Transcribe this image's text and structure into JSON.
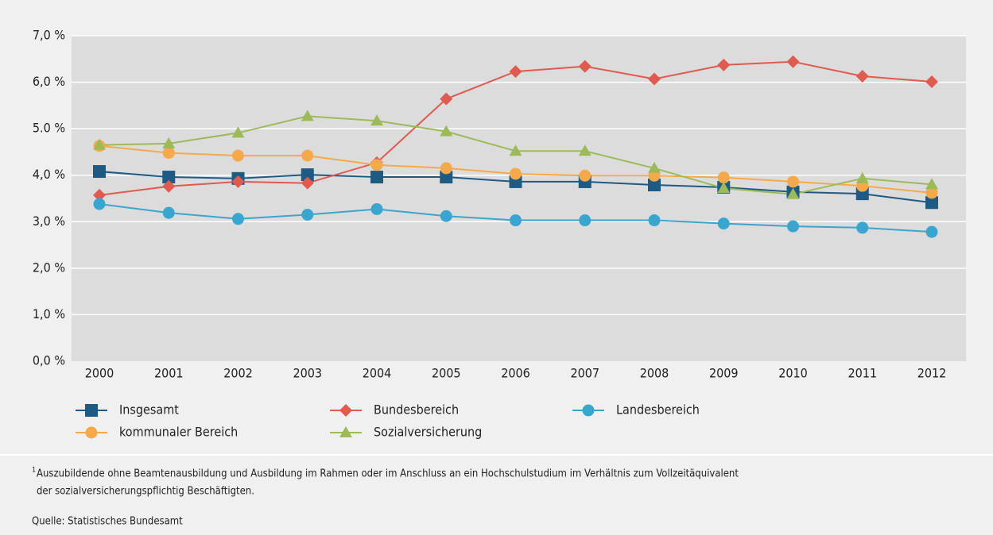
{
  "chart_data": {
    "type": "line",
    "categories": [
      "2000",
      "2001",
      "2002",
      "2003",
      "2004",
      "2005",
      "2006",
      "2007",
      "2008",
      "2009",
      "2010",
      "2011",
      "2012"
    ],
    "series": [
      {
        "name": "Insgesamt",
        "color": "#1d5a84",
        "marker": "square",
        "values": [
          4.08,
          3.96,
          3.93,
          4.01,
          3.96,
          3.96,
          3.86,
          3.86,
          3.79,
          3.74,
          3.64,
          3.6,
          3.41
        ]
      },
      {
        "name": "Bundesbereich",
        "color": "#e05a4f",
        "marker": "diamond",
        "values": [
          3.57,
          3.76,
          3.86,
          3.83,
          4.27,
          5.64,
          6.23,
          6.34,
          6.07,
          6.37,
          6.44,
          6.13,
          6.01
        ]
      },
      {
        "name": "Landesbereich",
        "color": "#3aa6cf",
        "marker": "circle",
        "values": [
          3.38,
          3.19,
          3.06,
          3.15,
          3.27,
          3.12,
          3.03,
          3.03,
          3.03,
          2.96,
          2.9,
          2.87,
          2.78
        ]
      },
      {
        "name": "kommunaler Bereich",
        "color": "#f5a94a",
        "marker": "circle",
        "values": [
          4.63,
          4.48,
          4.42,
          4.42,
          4.22,
          4.15,
          4.03,
          3.99,
          3.99,
          3.95,
          3.86,
          3.77,
          3.62
        ]
      },
      {
        "name": "Sozialversicherung",
        "color": "#9cbb58",
        "marker": "triangle",
        "values": [
          4.65,
          4.68,
          4.91,
          5.27,
          5.17,
          4.94,
          4.52,
          4.52,
          4.15,
          3.72,
          3.59,
          3.93,
          3.8
        ]
      }
    ],
    "ylim": [
      0,
      7
    ],
    "yticks": [
      {
        "value": 0,
        "label": "0,0 %"
      },
      {
        "value": 1,
        "label": "1,0 %"
      },
      {
        "value": 2,
        "label": "2,0 %"
      },
      {
        "value": 3,
        "label": "3,0 %"
      },
      {
        "value": 4,
        "label": "4,0 %"
      },
      {
        "value": 5,
        "label": "5.0 %"
      },
      {
        "value": 6,
        "label": "6,0 %"
      },
      {
        "value": 7,
        "label": "7,0 %"
      }
    ],
    "grid": true,
    "footnote_mark": "1",
    "footnote": [
      "Auszubildende ohne Beamtenausbildung und Ausbildung im Rahmen oder im Anschluss an ein Hochschulstudium im Verhältnis zum Vollzeitäquivalent",
      "der sozialversicherungspflichtig Beschäftigten."
    ],
    "source": "Quelle: Statistisches Bundesamt"
  }
}
